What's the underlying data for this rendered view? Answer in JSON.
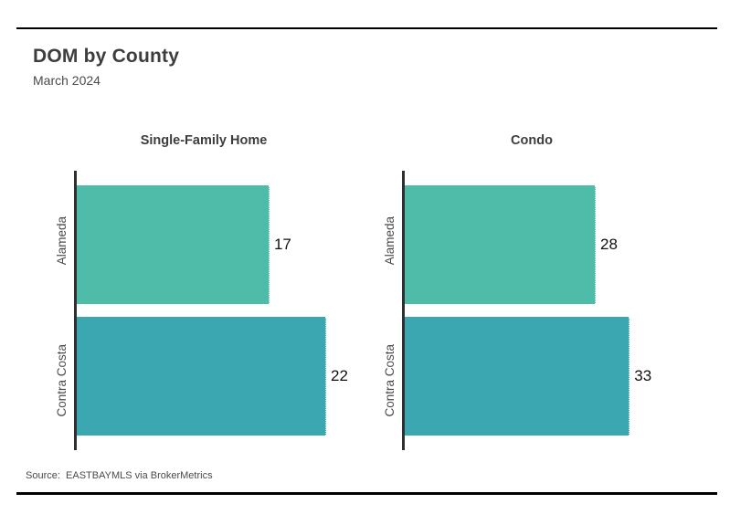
{
  "page": {
    "title": "DOM by County",
    "subtitle": "March 2024",
    "source_label": "Source:  EASTBAYMLS via BrokerMetrics"
  },
  "colors": {
    "alameda_bar": "#4ebca8",
    "contra_costa_bar": "#3aa7b1",
    "rule": "#000000",
    "axis_line": "#2f2f2f",
    "title_text": "#3d3d3d",
    "muted_text": "#4a4a4a",
    "value_text": "#111111",
    "background": "#ffffff"
  },
  "chart_data": [
    {
      "type": "bar",
      "orientation": "horizontal",
      "title": "Single-Family Home",
      "categories": [
        "Alameda",
        "Contra Costa"
      ],
      "values": [
        17,
        22
      ],
      "value_labels": [
        "17",
        "22"
      ],
      "bar_colors": [
        "#4ebca8",
        "#3aa7b1"
      ],
      "xlim": [
        0,
        24.9
      ],
      "xlabel": "",
      "ylabel": "",
      "grid": false,
      "legend": false,
      "axis_line": "left-only"
    },
    {
      "type": "bar",
      "orientation": "horizontal",
      "title": "Condo",
      "categories": [
        "Alameda",
        "Contra Costa"
      ],
      "values": [
        28,
        33
      ],
      "value_labels": [
        "28",
        "33"
      ],
      "bar_colors": [
        "#4ebca8",
        "#3aa7b1"
      ],
      "xlim": [
        0,
        41.4
      ],
      "xlabel": "",
      "ylabel": "",
      "grid": false,
      "legend": false,
      "axis_line": "left-only"
    }
  ]
}
